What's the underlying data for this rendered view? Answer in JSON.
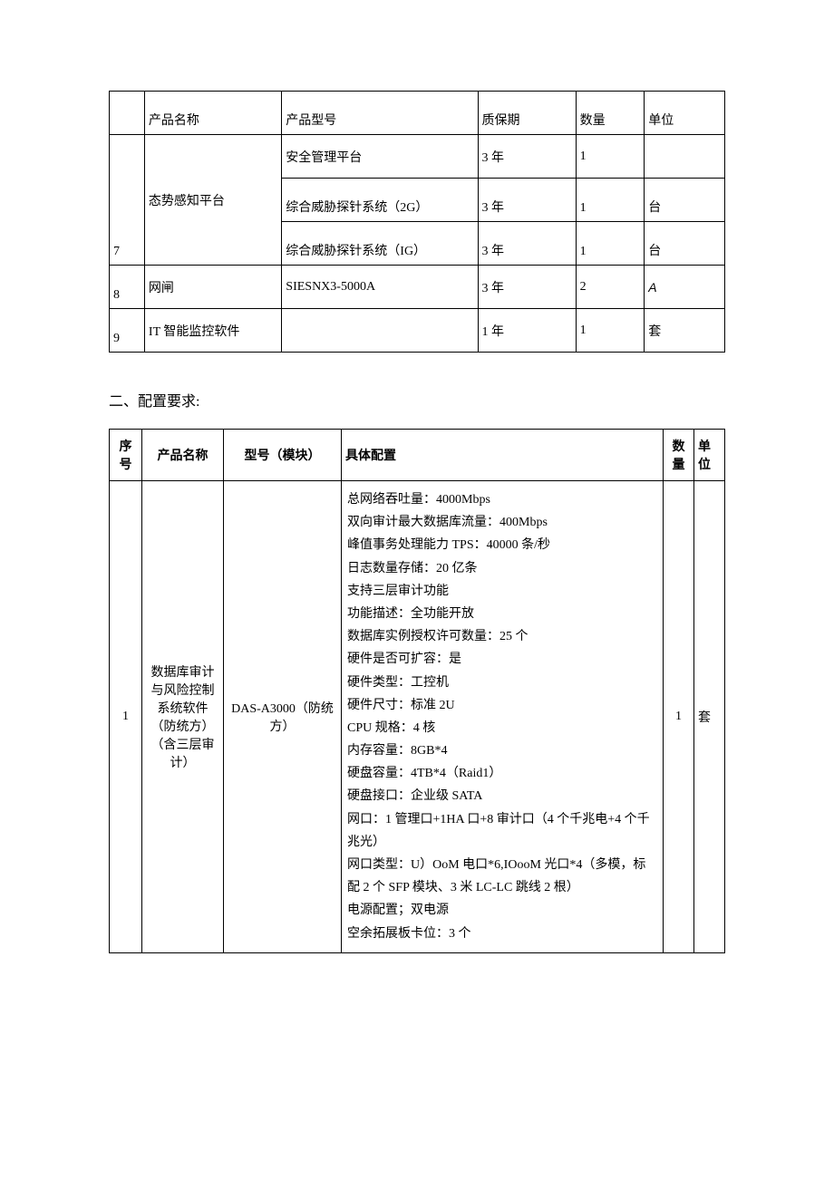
{
  "table1": {
    "headers": [
      "",
      "产品名称",
      "产品型号",
      "质保期",
      "数量",
      "单位"
    ],
    "rows": [
      {
        "seq": "7",
        "name": "态势感知平台",
        "sub": [
          {
            "model": "安全管理平台",
            "warranty": "3 年",
            "qty": "1",
            "unit": ""
          },
          {
            "model": "综合威胁探针系统（2G）",
            "warranty": "3 年",
            "qty": "1",
            "unit": "台"
          },
          {
            "model": "综合威胁探针系统（IG）",
            "warranty": "3 年",
            "qty": "1",
            "unit": "台"
          }
        ]
      },
      {
        "seq": "8",
        "name": "网闸",
        "model": "SIESNX3-5000A",
        "warranty": "3 年",
        "qty": "2",
        "unit": "A"
      },
      {
        "seq": "9",
        "name": "IT 智能监控软件",
        "model": "",
        "warranty": "1 年",
        "qty": "1",
        "unit": "套"
      }
    ]
  },
  "section_title": "二、配置要求:",
  "table2": {
    "headers": {
      "seq": "序号",
      "name": "产品名称",
      "model": "型号（模块）",
      "spec": "具体配置",
      "qty": "数量",
      "unit": "单位"
    },
    "row1": {
      "seq": "1",
      "name": "数据库审计与风险控制系统软件（防统方）（含三层审计）",
      "model": "DAS-A3000（防统方）",
      "spec_lines": [
        "总网络吞吐量：4000Mbps",
        "双向审计最大数据库流量：400Mbps",
        "峰值事务处理能力 TPS：40000 条/秒",
        "日志数量存储：20 亿条",
        "支持三层审计功能",
        "功能描述：全功能开放",
        "数据库实例授权许可数量：25 个",
        "硬件是否可扩容：是",
        "硬件类型：工控机",
        "硬件尺寸：标准 2U",
        "CPU 规格：4 核",
        "内存容量：8GB*4",
        "硬盘容量：4TB*4（Raid1）",
        "硬盘接口：企业级 SATA",
        "网口：1 管理口+1HA 口+8 审计口（4 个千兆电+4 个千兆光）",
        "网口类型：U）OoM 电口*6,IOooM 光口*4（多模，标配 2 个 SFP 模块、3 米 LC-LC 跳线 2 根）",
        "电源配置；双电源",
        "空余拓展板卡位：3 个"
      ],
      "qty": "1",
      "unit": "套"
    }
  }
}
